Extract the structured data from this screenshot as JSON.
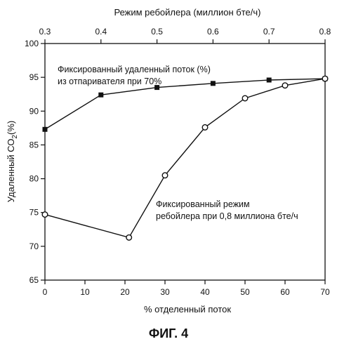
{
  "chart_data": {
    "type": "line",
    "bottom_axis": {
      "label": "% отделенный поток",
      "range": [
        0,
        70
      ],
      "ticks": [
        "0",
        "10",
        "20",
        "30",
        "40",
        "50",
        "60",
        "70"
      ]
    },
    "top_axis": {
      "label": "Режим ребойлера (миллион бте/ч)",
      "range": [
        0.3,
        0.8
      ],
      "ticks": [
        "0.3",
        "0.4",
        "0.5",
        "0.6",
        "0.7",
        "0.8"
      ]
    },
    "y_axis": {
      "label_main": "Удаленный СО",
      "label_sub": "2",
      "label_end": "(%)",
      "range": [
        65,
        100
      ],
      "ticks": [
        "65",
        "70",
        "75",
        "80",
        "85",
        "90",
        "95",
        "100"
      ]
    },
    "grid": false,
    "series": [
      {
        "name": "Фиксированный удаленный поток (%) из отпаривателя при 70%",
        "x_axis": "top",
        "marker": "filled-square",
        "x": [
          0.3,
          0.4,
          0.5,
          0.6,
          0.7,
          0.8
        ],
        "y": [
          87.3,
          92.4,
          93.5,
          94.1,
          94.6,
          94.8
        ]
      },
      {
        "name": "Фиксированный режим ребойлера при 0,8 миллиона бте/ч",
        "x_axis": "bottom",
        "marker": "open-circle",
        "x": [
          0,
          21,
          30,
          40,
          50,
          60,
          70
        ],
        "y": [
          74.7,
          71.3,
          80.5,
          87.6,
          91.9,
          93.8,
          94.8
        ]
      }
    ],
    "annotations": {
      "series1_line1": "Фиксированный удаленный поток (%)",
      "series1_line2": "из отпаривателя при 70%",
      "series2_line1": "Фиксированный режим",
      "series2_line2": "ребойлера при 0,8 миллиона бте/ч"
    }
  },
  "caption": "ФИГ. 4"
}
